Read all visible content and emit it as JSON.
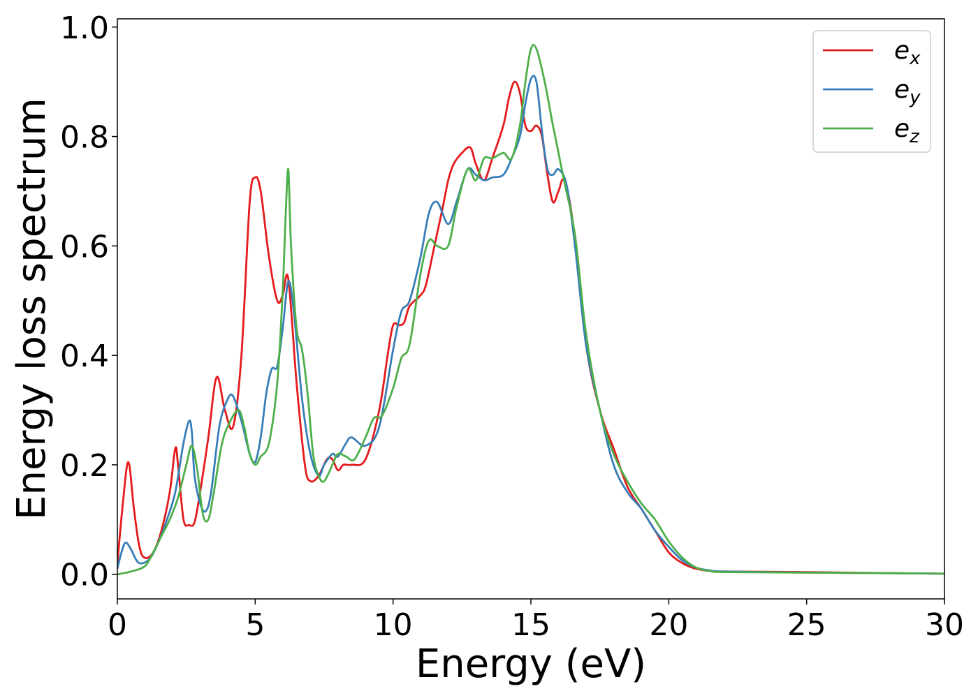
{
  "chart_data": {
    "type": "line",
    "xlabel": "Energy (eV)",
    "ylabel": "Energy loss spectrum",
    "xlim": [
      0,
      30
    ],
    "ylim": [
      -0.045,
      1.015
    ],
    "xticks": [
      0,
      5,
      10,
      15,
      20,
      25,
      30
    ],
    "xtick_labels": [
      "0",
      "5",
      "10",
      "15",
      "20",
      "25",
      "30"
    ],
    "yticks": [
      0.0,
      0.2,
      0.4,
      0.6,
      0.8,
      1.0
    ],
    "ytick_labels": [
      "0.0",
      "0.2",
      "0.4",
      "0.6",
      "0.8",
      "1.0"
    ],
    "grid": false,
    "legend_position": "top-right",
    "series": [
      {
        "name": "e",
        "subscript": "x",
        "color": "#e41a1c",
        "x": [
          0,
          0.2,
          0.4,
          0.6,
          0.8,
          1.0,
          1.3,
          1.6,
          1.9,
          2.1,
          2.2,
          2.4,
          2.6,
          2.8,
          3.0,
          3.3,
          3.6,
          3.9,
          4.2,
          4.5,
          4.8,
          5.0,
          5.2,
          5.5,
          5.8,
          6.0,
          6.2,
          6.5,
          6.8,
          7.0,
          7.3,
          7.6,
          7.8,
          8.0,
          8.2,
          8.5,
          9.0,
          9.5,
          9.8,
          10.0,
          10.2,
          10.4,
          10.6,
          11.0,
          11.2,
          11.5,
          11.8,
          12.0,
          12.2,
          12.5,
          12.8,
          13.0,
          13.3,
          13.6,
          14.0,
          14.2,
          14.4,
          14.6,
          14.8,
          15.0,
          15.2,
          15.4,
          15.6,
          15.8,
          16.0,
          16.2,
          16.5,
          17.0,
          17.5,
          18.0,
          18.5,
          19.0,
          19.5,
          20.0,
          20.5,
          21.0,
          21.5,
          22.0,
          25.0,
          28.0,
          30.0
        ],
        "y": [
          0.02,
          0.13,
          0.205,
          0.12,
          0.05,
          0.03,
          0.04,
          0.08,
          0.15,
          0.23,
          0.2,
          0.1,
          0.09,
          0.095,
          0.15,
          0.25,
          0.36,
          0.3,
          0.27,
          0.4,
          0.68,
          0.725,
          0.7,
          0.58,
          0.5,
          0.51,
          0.54,
          0.35,
          0.2,
          0.17,
          0.18,
          0.21,
          0.21,
          0.19,
          0.2,
          0.2,
          0.21,
          0.3,
          0.4,
          0.455,
          0.455,
          0.46,
          0.49,
          0.51,
          0.53,
          0.6,
          0.67,
          0.72,
          0.75,
          0.77,
          0.78,
          0.75,
          0.72,
          0.76,
          0.82,
          0.87,
          0.9,
          0.88,
          0.82,
          0.81,
          0.82,
          0.8,
          0.73,
          0.68,
          0.7,
          0.72,
          0.65,
          0.42,
          0.3,
          0.23,
          0.16,
          0.12,
          0.08,
          0.04,
          0.02,
          0.01,
          0.006,
          0.005,
          0.004,
          0.002,
          0.001
        ]
      },
      {
        "name": "e",
        "subscript": "y",
        "color": "#377eb8",
        "x": [
          0,
          0.15,
          0.3,
          0.5,
          0.7,
          0.9,
          1.2,
          1.5,
          1.8,
          2.1,
          2.4,
          2.6,
          2.7,
          2.8,
          3.0,
          3.2,
          3.4,
          3.7,
          4.0,
          4.2,
          4.5,
          4.8,
          5.0,
          5.2,
          5.4,
          5.6,
          5.8,
          6.0,
          6.2,
          6.4,
          6.7,
          7.0,
          7.3,
          7.5,
          7.8,
          8.0,
          8.3,
          8.5,
          9.0,
          9.5,
          10.0,
          10.3,
          10.6,
          11.0,
          11.3,
          11.6,
          12.0,
          12.3,
          12.7,
          13.0,
          13.3,
          13.6,
          14.0,
          14.3,
          14.6,
          14.8,
          15.0,
          15.2,
          15.4,
          15.6,
          15.8,
          16.0,
          16.3,
          16.6,
          17.0,
          17.5,
          18.0,
          18.5,
          19.0,
          19.5,
          20.0,
          20.5,
          21.0,
          21.5,
          22.0,
          25.0,
          28.0,
          30.0
        ],
        "y": [
          0.01,
          0.04,
          0.058,
          0.045,
          0.025,
          0.02,
          0.03,
          0.06,
          0.1,
          0.15,
          0.24,
          0.28,
          0.26,
          0.18,
          0.13,
          0.115,
          0.15,
          0.27,
          0.32,
          0.325,
          0.28,
          0.22,
          0.205,
          0.25,
          0.33,
          0.375,
          0.38,
          0.45,
          0.535,
          0.48,
          0.32,
          0.22,
          0.18,
          0.2,
          0.22,
          0.215,
          0.24,
          0.25,
          0.235,
          0.27,
          0.41,
          0.48,
          0.5,
          0.58,
          0.66,
          0.68,
          0.64,
          0.68,
          0.74,
          0.73,
          0.72,
          0.725,
          0.73,
          0.76,
          0.8,
          0.86,
          0.905,
          0.9,
          0.81,
          0.74,
          0.73,
          0.74,
          0.71,
          0.6,
          0.42,
          0.3,
          0.2,
          0.15,
          0.12,
          0.08,
          0.05,
          0.025,
          0.012,
          0.007,
          0.005,
          0.003,
          0.002,
          0.001
        ]
      },
      {
        "name": "e",
        "subscript": "z",
        "color": "#4daf4a",
        "x": [
          0,
          0.5,
          1.0,
          1.3,
          1.6,
          1.9,
          2.2,
          2.5,
          2.7,
          2.9,
          3.1,
          3.3,
          3.5,
          3.8,
          4.1,
          4.4,
          4.6,
          4.8,
          5.0,
          5.2,
          5.5,
          5.8,
          6.0,
          6.1,
          6.2,
          6.3,
          6.5,
          6.7,
          6.9,
          7.1,
          7.3,
          7.5,
          7.8,
          8.0,
          8.3,
          8.6,
          9.0,
          9.3,
          9.6,
          10.0,
          10.3,
          10.6,
          11.0,
          11.3,
          11.6,
          12.0,
          12.3,
          12.7,
          13.0,
          13.3,
          13.6,
          14.0,
          14.3,
          14.6,
          14.8,
          15.0,
          15.2,
          15.5,
          15.8,
          16.2,
          16.6,
          17.0,
          17.5,
          18.0,
          18.5,
          19.0,
          19.5,
          20.0,
          20.5,
          21.0,
          21.5,
          22.0,
          25.0,
          28.0,
          30.0
        ],
        "y": [
          0.0,
          0.005,
          0.015,
          0.04,
          0.07,
          0.1,
          0.14,
          0.2,
          0.235,
          0.19,
          0.11,
          0.1,
          0.15,
          0.24,
          0.28,
          0.3,
          0.27,
          0.22,
          0.2,
          0.215,
          0.24,
          0.35,
          0.52,
          0.65,
          0.74,
          0.6,
          0.45,
          0.41,
          0.33,
          0.22,
          0.18,
          0.17,
          0.2,
          0.22,
          0.215,
          0.21,
          0.25,
          0.285,
          0.29,
          0.34,
          0.395,
          0.42,
          0.55,
          0.61,
          0.6,
          0.6,
          0.67,
          0.74,
          0.72,
          0.76,
          0.76,
          0.77,
          0.76,
          0.82,
          0.9,
          0.96,
          0.96,
          0.9,
          0.82,
          0.72,
          0.62,
          0.44,
          0.3,
          0.22,
          0.17,
          0.13,
          0.1,
          0.06,
          0.03,
          0.012,
          0.006,
          0.004,
          0.003,
          0.002,
          0.001
        ]
      }
    ]
  }
}
